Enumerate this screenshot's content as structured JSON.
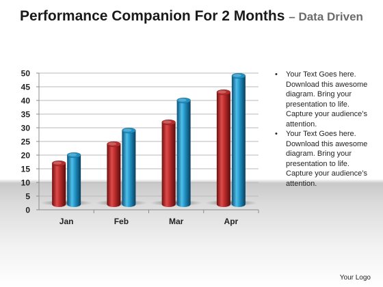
{
  "slide": {
    "title_main": "Performance Companion For 2 Months",
    "title_sub": "– Data Driven",
    "notes": [
      "Your Text Goes here. Download this awesome diagram. Bring your presentation to life. Capture your audience’s attention.",
      "Your Text Goes here. Download this awesome diagram. Bring your presentation to life. Capture your audience’s attention."
    ],
    "bullet_char": "•",
    "logo": "Your Logo"
  },
  "chart_data": {
    "type": "bar",
    "categories": [
      "Jan",
      "Feb",
      "Mar",
      "Apr"
    ],
    "series": [
      {
        "values": [
          17,
          24,
          32,
          43
        ],
        "color": "#b52a2a"
      },
      {
        "values": [
          20,
          29,
          40,
          49
        ],
        "color": "#1e8fc0"
      }
    ],
    "ylim": [
      0,
      50
    ],
    "yticks": [
      0,
      5,
      10,
      15,
      20,
      25,
      30,
      35,
      40,
      45,
      50
    ],
    "grid": true,
    "style": "3d-cylinder"
  }
}
